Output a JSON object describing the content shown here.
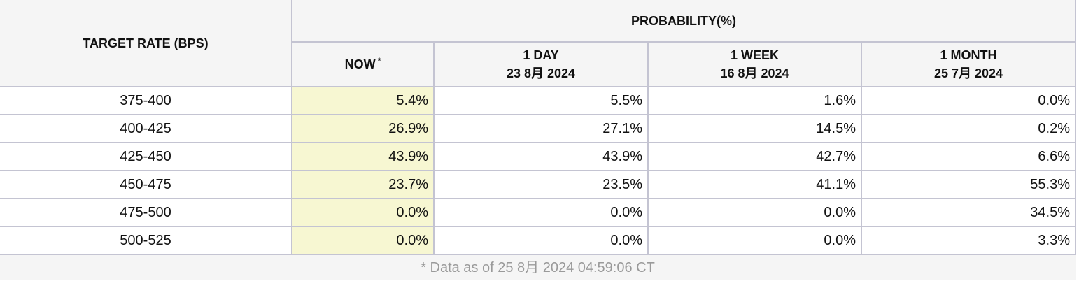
{
  "chart_data": {
    "type": "table",
    "header": {
      "target_rate_label": "TARGET RATE (BPS)",
      "probability_label": "PROBABILITY(%)",
      "columns": [
        {
          "label": "NOW",
          "marker": "*",
          "date": ""
        },
        {
          "label": "1 DAY",
          "date": "23 8月 2024"
        },
        {
          "label": "1 WEEK",
          "date": "16 8月 2024"
        },
        {
          "label": "1 MONTH",
          "date": "25 7月 2024"
        }
      ]
    },
    "rows": [
      {
        "rate": "375-400",
        "values": [
          "5.4%",
          "5.5%",
          "1.6%",
          "0.0%"
        ]
      },
      {
        "rate": "400-425",
        "values": [
          "26.9%",
          "27.1%",
          "14.5%",
          "0.2%"
        ]
      },
      {
        "rate": "425-450",
        "values": [
          "43.9%",
          "43.9%",
          "42.7%",
          "6.6%"
        ]
      },
      {
        "rate": "450-475",
        "values": [
          "23.7%",
          "23.5%",
          "41.1%",
          "55.3%"
        ]
      },
      {
        "rate": "475-500",
        "values": [
          "0.0%",
          "0.0%",
          "0.0%",
          "34.5%"
        ]
      },
      {
        "rate": "500-525",
        "values": [
          "0.0%",
          "0.0%",
          "0.0%",
          "3.3%"
        ]
      }
    ],
    "footer": "* Data as of 25 8月 2024 04:59:06 CT"
  },
  "colors": {
    "header_bg": "#f5f5f5",
    "now_column_bg": "#f7f7d2",
    "grid": "#c4c4d2",
    "footer_text": "#9a9a9a"
  }
}
